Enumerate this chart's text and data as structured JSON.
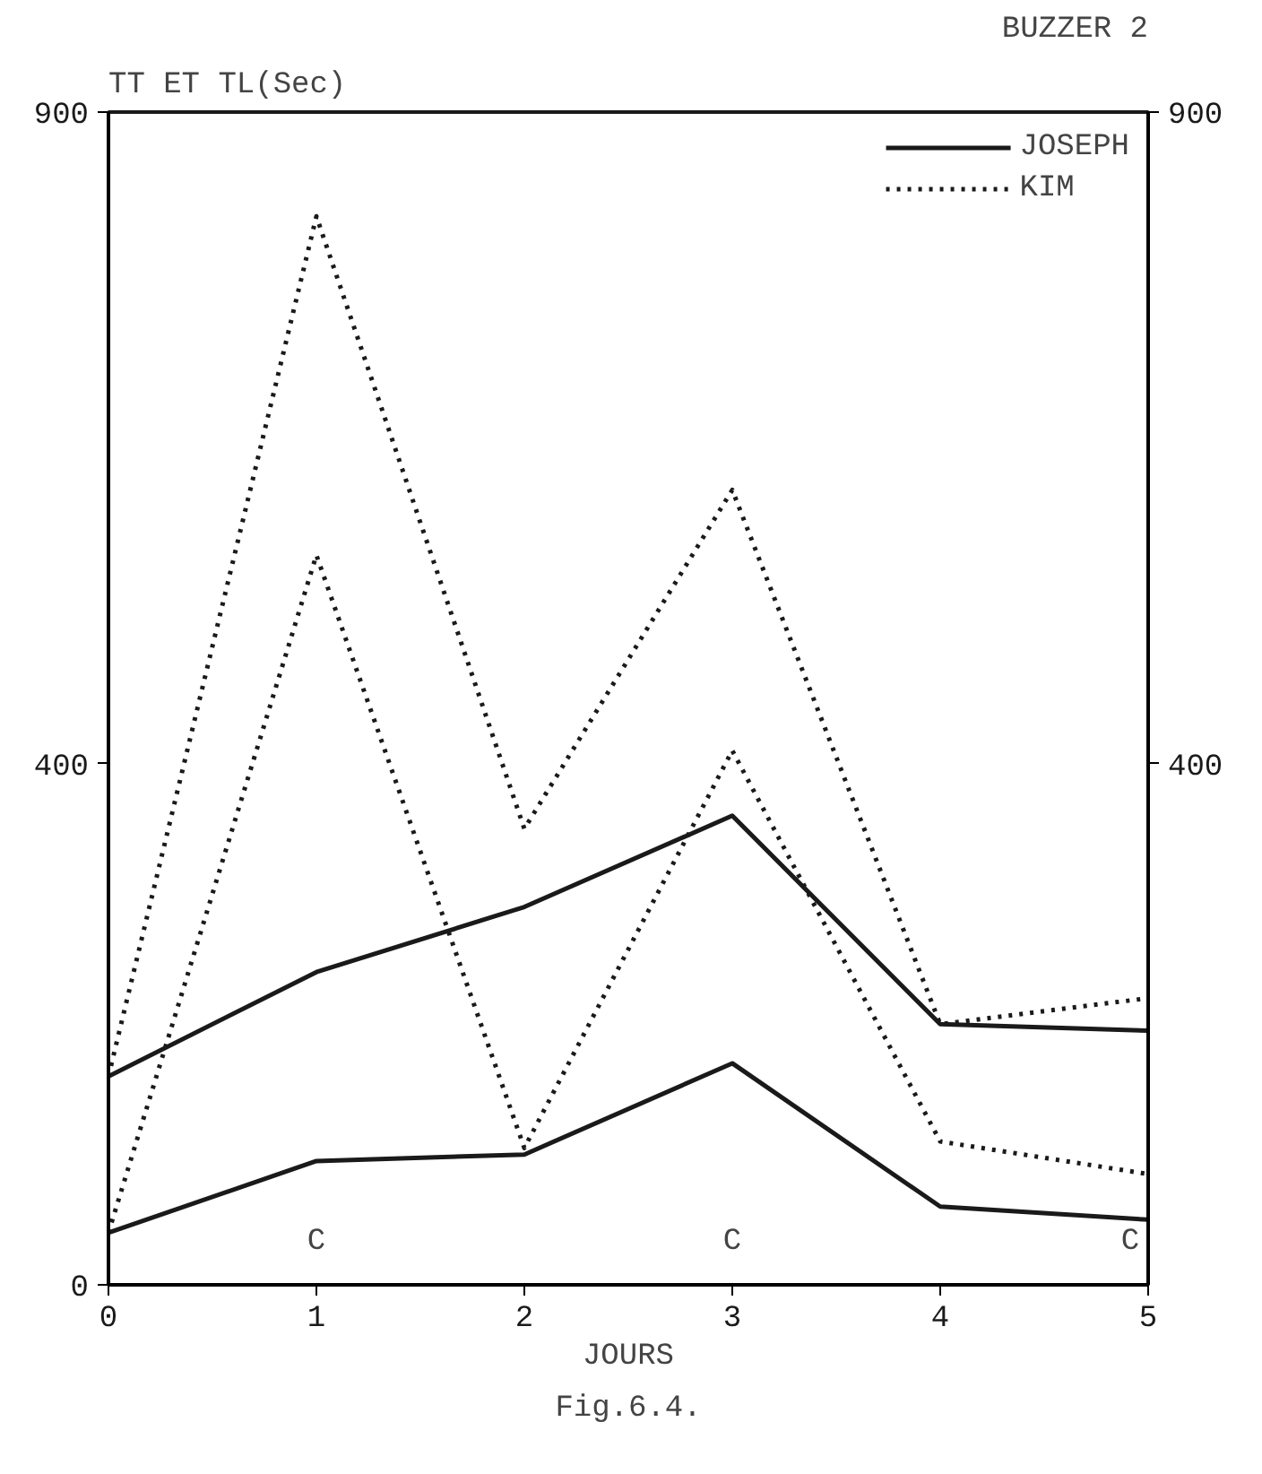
{
  "chart_data": {
    "type": "line",
    "title": "BUZZER 2",
    "ylabel": "TT ET TL(Sec)",
    "xlabel": "JOURS",
    "annotations": [
      "C",
      "C",
      "C",
      "Fig.6.4."
    ],
    "x": [
      0,
      1,
      2,
      3,
      4,
      5
    ],
    "series": [
      {
        "name": "JOSEPH",
        "color": "#1a1a1a",
        "line_style": "solid",
        "values": [
          160,
          240,
          290,
          360,
          200,
          195
        ]
      },
      {
        "color": "#1a1a1a",
        "line_style": "solid",
        "values": [
          40,
          95,
          100,
          170,
          60,
          50
        ]
      },
      {
        "name": "KIM",
        "color": "#1a1a1a",
        "line_style": "dotted",
        "values": [
          160,
          820,
          350,
          610,
          200,
          220
        ]
      },
      {
        "color": "#1a1a1a",
        "line_style": "dotted",
        "values": [
          40,
          560,
          105,
          410,
          110,
          85
        ]
      }
    ],
    "xlim": [
      0,
      5
    ],
    "xticks": [
      0,
      1,
      2,
      3,
      4,
      5
    ],
    "ylim": [
      0,
      900
    ],
    "yticks": [
      0,
      400,
      900
    ],
    "y2lim": [
      0,
      900
    ],
    "y2ticks": [
      400,
      900
    ],
    "grid": false,
    "legend": "top right",
    "marker": "none"
  }
}
